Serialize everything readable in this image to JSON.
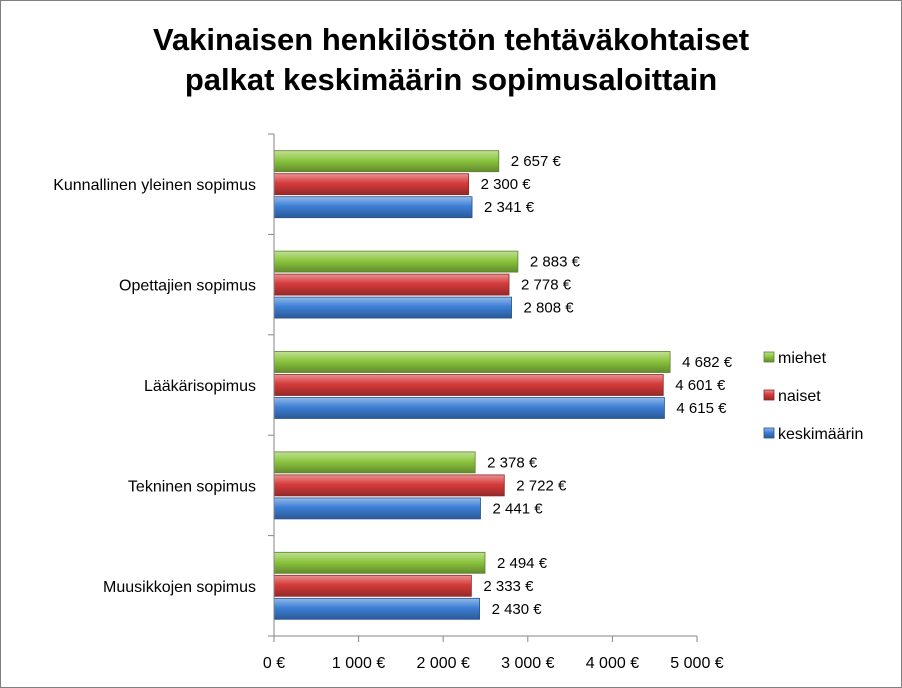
{
  "chart_data": {
    "type": "bar",
    "orientation": "horizontal",
    "title_line1": "Vakinaisen henkilöstön tehtäväkohtaiset",
    "title_line2": "palkat keskimäärin sopimusaloittain",
    "categories": [
      "Kunnallinen yleinen sopimus",
      "Opettajien sopimus",
      "Lääkärisopimus",
      "Tekninen sopimus",
      "Muusikkojen sopimus"
    ],
    "series": [
      {
        "name": "miehet",
        "color": "#8cc63f",
        "values": [
          2657,
          2883,
          4682,
          2378,
          2494
        ],
        "labels": [
          "2 657 €",
          "2 883 €",
          "4 682 €",
          "2 378 €",
          "2 494 €"
        ]
      },
      {
        "name": "naiset",
        "color": "#d63b3b",
        "values": [
          2300,
          2778,
          4601,
          2722,
          2333
        ],
        "labels": [
          "2 300 €",
          "2 778 €",
          "4 601 €",
          "2 722 €",
          "2 333 €"
        ]
      },
      {
        "name": "keskimäärin",
        "color": "#3d7fd6",
        "values": [
          2341,
          2808,
          4615,
          2441,
          2430
        ],
        "labels": [
          "2 341 €",
          "2 808 €",
          "4 615 €",
          "2 441 €",
          "2 430 €"
        ]
      }
    ],
    "xlim": [
      0,
      5000
    ],
    "xticks": [
      0,
      1000,
      2000,
      3000,
      4000,
      5000
    ],
    "xtick_labels": [
      "0 €",
      "1 000 €",
      "2 000 €",
      "3 000 €",
      "4 000 €",
      "5 000 €"
    ],
    "grid": false,
    "legend_position": "right"
  }
}
